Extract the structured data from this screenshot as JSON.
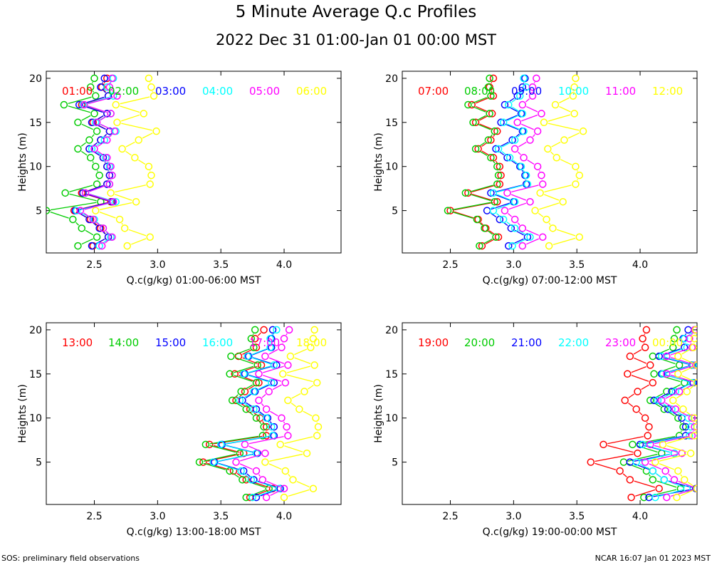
{
  "title": "5 Minute Average Q.c Profiles",
  "subtitle": "2022 Dec 31 01:00-Jan 01 00:00 MST",
  "footer": {
    "left": "SOS: preliminary field observations",
    "right": "NCAR 16:07 Jan 01 2023 MST"
  },
  "colors": {
    "red": "#ff0000",
    "green": "#00cc00",
    "blue": "#0000ff",
    "cyan": "#00ffff",
    "magenta": "#ff00ff",
    "yellow": "#ffff00"
  },
  "chart_data": [
    {
      "type": "line",
      "xlabel": "Q.c(g/kg) 01:00-06:00 MST",
      "ylabel": "Heights (m)",
      "xlim": [
        2.12,
        4.45
      ],
      "ylim": [
        0.2,
        20.8
      ],
      "xticks": [
        "2.5",
        "3.0",
        "3.5",
        "4.0"
      ],
      "yticks": [
        "5",
        "10",
        "15",
        "20"
      ],
      "heights": [
        1,
        2,
        3,
        4,
        5,
        6,
        7,
        8,
        9,
        10,
        11,
        12,
        13,
        14,
        15,
        16,
        17,
        18,
        19,
        20
      ],
      "series": [
        {
          "name": "01:00",
          "color": "#ff0000",
          "values": [
            2.49,
            2.61,
            2.55,
            2.47,
            2.34,
            2.63,
            2.4,
            2.6,
            2.62,
            2.6,
            2.57,
            2.46,
            2.55,
            2.62,
            2.49,
            2.6,
            2.4,
            2.61,
            2.56,
            2.6
          ]
        },
        {
          "name": "02:00",
          "color": "#00cc00",
          "values": [
            2.37,
            2.52,
            2.4,
            2.33,
            2.12,
            2.55,
            2.27,
            2.52,
            2.54,
            2.51,
            2.47,
            2.37,
            2.46,
            2.52,
            2.37,
            2.5,
            2.26,
            2.51,
            2.47,
            2.5
          ]
        },
        {
          "name": "03:00",
          "color": "#0000ff",
          "values": [
            2.48,
            2.61,
            2.54,
            2.46,
            2.35,
            2.64,
            2.41,
            2.6,
            2.62,
            2.6,
            2.57,
            2.46,
            2.55,
            2.62,
            2.48,
            2.6,
            2.38,
            2.61,
            2.55,
            2.58
          ]
        },
        {
          "name": "04:00",
          "color": "#00ffff",
          "values": [
            2.54,
            2.63,
            2.57,
            2.5,
            2.36,
            2.67,
            2.43,
            2.62,
            2.64,
            2.62,
            2.59,
            2.48,
            2.58,
            2.67,
            2.51,
            2.63,
            2.41,
            2.65,
            2.6,
            2.65
          ]
        },
        {
          "name": "05:00",
          "color": "#ff00ff",
          "values": [
            2.56,
            2.64,
            2.57,
            2.49,
            2.39,
            2.65,
            2.43,
            2.62,
            2.64,
            2.63,
            2.6,
            2.5,
            2.6,
            2.66,
            2.52,
            2.63,
            2.42,
            2.68,
            2.62,
            2.64
          ]
        },
        {
          "name": "06:00",
          "color": "#ffff00",
          "values": [
            2.76,
            2.94,
            2.74,
            2.7,
            2.51,
            2.83,
            2.63,
            2.94,
            2.95,
            2.93,
            2.82,
            2.72,
            2.85,
            2.99,
            2.68,
            2.89,
            2.67,
            2.97,
            2.95,
            2.93
          ]
        }
      ]
    },
    {
      "type": "line",
      "xlabel": "Q.c(g/kg) 07:00-12:00 MST",
      "ylabel": "Heights (m)",
      "xlim": [
        2.12,
        4.45
      ],
      "ylim": [
        0.2,
        20.8
      ],
      "xticks": [
        "2.5",
        "3.0",
        "3.5",
        "4.0"
      ],
      "yticks": [
        "5",
        "10",
        "15",
        "20"
      ],
      "heights": [
        1,
        2,
        3,
        4,
        5,
        6,
        7,
        8,
        9,
        10,
        11,
        12,
        13,
        14,
        15,
        16,
        17,
        18,
        19,
        20
      ],
      "series": [
        {
          "name": "07:00",
          "color": "#ff0000",
          "values": [
            2.75,
            2.88,
            2.78,
            2.72,
            2.5,
            2.87,
            2.64,
            2.89,
            2.9,
            2.89,
            2.84,
            2.72,
            2.82,
            2.87,
            2.7,
            2.83,
            2.67,
            2.84,
            2.81,
            2.84
          ]
        },
        {
          "name": "08:00",
          "color": "#00cc00",
          "values": [
            2.73,
            2.86,
            2.77,
            2.71,
            2.48,
            2.85,
            2.62,
            2.87,
            2.88,
            2.87,
            2.82,
            2.7,
            2.8,
            2.85,
            2.68,
            2.81,
            2.64,
            2.82,
            2.8,
            2.81
          ]
        },
        {
          "name": "09:00",
          "color": "#0000ff",
          "values": [
            2.96,
            3.11,
            2.98,
            2.89,
            2.79,
            3.0,
            2.82,
            3.1,
            3.09,
            3.05,
            2.95,
            2.86,
            2.99,
            3.07,
            2.9,
            3.06,
            2.93,
            3.03,
            3.07,
            3.09
          ]
        },
        {
          "name": "10:00",
          "color": "#00ffff",
          "values": [
            2.99,
            3.13,
            3.01,
            2.92,
            2.84,
            3.01,
            2.84,
            3.11,
            3.1,
            3.06,
            2.97,
            2.88,
            3.01,
            3.08,
            2.92,
            3.07,
            2.96,
            3.05,
            3.1,
            3.08
          ]
        },
        {
          "name": "11:00",
          "color": "#ff00ff",
          "values": [
            3.07,
            3.23,
            3.07,
            3.01,
            2.93,
            3.13,
            2.95,
            3.23,
            3.22,
            3.19,
            3.08,
            3.01,
            3.13,
            3.19,
            3.03,
            3.22,
            3.07,
            3.15,
            3.15,
            3.18
          ]
        },
        {
          "name": "12:00",
          "color": "#ffff00",
          "values": [
            3.28,
            3.52,
            3.31,
            3.26,
            3.17,
            3.39,
            3.21,
            3.49,
            3.52,
            3.49,
            3.34,
            3.27,
            3.4,
            3.55,
            3.24,
            3.48,
            3.33,
            3.47,
            3.48,
            3.49
          ]
        }
      ]
    },
    {
      "type": "line",
      "xlabel": "Q.c(g/kg) 13:00-18:00 MST",
      "ylabel": "Heights (m)",
      "xlim": [
        2.12,
        4.45
      ],
      "ylim": [
        0.2,
        20.8
      ],
      "xticks": [
        "2.5",
        "3.0",
        "3.5",
        "4.0"
      ],
      "yticks": [
        "5",
        "10",
        "15",
        "20"
      ],
      "heights": [
        1,
        2,
        3,
        4,
        5,
        6,
        7,
        8,
        9,
        10,
        11,
        12,
        13,
        14,
        15,
        16,
        17,
        18,
        19,
        20
      ],
      "series": [
        {
          "name": "13:00",
          "color": "#ff0000",
          "values": [
            3.73,
            3.91,
            3.7,
            3.6,
            3.36,
            3.68,
            3.41,
            3.86,
            3.86,
            3.81,
            3.73,
            3.62,
            3.69,
            3.8,
            3.61,
            3.82,
            3.64,
            3.78,
            3.77,
            3.84
          ]
        },
        {
          "name": "14:00",
          "color": "#00cc00",
          "values": [
            3.7,
            3.88,
            3.67,
            3.57,
            3.33,
            3.65,
            3.38,
            3.83,
            3.84,
            3.78,
            3.7,
            3.59,
            3.66,
            3.78,
            3.57,
            3.79,
            3.58,
            3.76,
            3.74,
            3.77
          ]
        },
        {
          "name": "15:00",
          "color": "#0000ff",
          "values": [
            3.78,
            3.97,
            3.76,
            3.68,
            3.45,
            3.79,
            3.51,
            3.92,
            3.92,
            3.87,
            3.78,
            3.67,
            3.77,
            3.92,
            3.69,
            3.94,
            3.72,
            3.9,
            3.9,
            3.91
          ]
        },
        {
          "name": "16:00",
          "color": "#00ffff",
          "values": [
            3.75,
            3.96,
            3.74,
            3.66,
            3.44,
            3.78,
            3.5,
            3.91,
            3.9,
            3.86,
            3.76,
            3.65,
            3.76,
            3.9,
            3.68,
            3.92,
            3.71,
            3.89,
            3.89,
            3.94
          ]
        },
        {
          "name": "17:00",
          "color": "#ff00ff",
          "values": [
            3.86,
            4.0,
            3.83,
            3.78,
            3.62,
            3.85,
            3.69,
            4.03,
            4.02,
            3.98,
            3.86,
            3.8,
            3.88,
            4.01,
            3.8,
            4.03,
            3.85,
            3.98,
            4.0,
            4.04
          ]
        },
        {
          "name": "18:00",
          "color": "#ffff00",
          "values": [
            4.0,
            4.23,
            4.07,
            4.01,
            3.85,
            4.18,
            3.97,
            4.26,
            4.27,
            4.25,
            4.12,
            4.03,
            4.16,
            4.26,
            3.99,
            4.24,
            4.05,
            4.21,
            4.23,
            4.24
          ]
        }
      ]
    },
    {
      "type": "line",
      "xlabel": "Q.c(g/kg) 19:00-00:00 MST",
      "ylabel": "Heights (m)",
      "xlim": [
        2.12,
        4.45
      ],
      "ylim": [
        0.2,
        20.8
      ],
      "xticks": [
        "2.5",
        "3.0",
        "3.5",
        "4.0"
      ],
      "yticks": [
        "5",
        "10",
        "15",
        "20"
      ],
      "heights": [
        1,
        2,
        3,
        4,
        5,
        6,
        7,
        8,
        9,
        10,
        11,
        12,
        13,
        14,
        15,
        16,
        17,
        18,
        19,
        20
      ],
      "series": [
        {
          "name": "19:00",
          "color": "#ff0000",
          "values": [
            3.93,
            4.15,
            3.92,
            3.84,
            3.61,
            3.98,
            3.71,
            4.06,
            4.07,
            4.04,
            3.97,
            3.88,
            3.98,
            4.1,
            3.9,
            4.08,
            3.92,
            4.04,
            4.02,
            4.05
          ]
        },
        {
          "name": "20:00",
          "color": "#00cc00",
          "values": [
            4.03,
            4.32,
            4.1,
            4.05,
            3.87,
            4.17,
            3.94,
            4.31,
            4.34,
            4.3,
            4.19,
            4.08,
            4.21,
            4.35,
            4.11,
            4.31,
            4.1,
            4.26,
            4.27,
            4.29
          ]
        },
        {
          "name": "21:00",
          "color": "#0000ff",
          "values": [
            4.07,
            4.44,
            4.19,
            4.1,
            3.92,
            4.27,
            4.0,
            4.36,
            4.36,
            4.33,
            4.22,
            4.11,
            4.25,
            4.42,
            4.17,
            4.41,
            4.15,
            4.35,
            4.34,
            4.38
          ]
        },
        {
          "name": "22:00",
          "color": "#00ffff",
          "values": [
            4.12,
            4.37,
            4.19,
            4.1,
            3.97,
            4.27,
            4.02,
            4.39,
            4.4,
            4.38,
            4.25,
            4.14,
            4.28,
            4.41,
            4.18,
            4.42,
            4.17,
            4.37,
            4.35,
            4.44
          ]
        },
        {
          "name": "23:00",
          "color": "#ff00ff",
          "values": [
            4.21,
            4.45,
            4.27,
            4.2,
            4.04,
            4.33,
            4.08,
            4.41,
            4.43,
            4.41,
            4.28,
            4.17,
            4.31,
            4.45,
            4.21,
            4.44,
            4.21,
            4.41,
            4.39,
            4.43
          ]
        },
        {
          "name": "00:00",
          "color": "#ffff00",
          "values": [
            4.29,
            4.45,
            4.35,
            4.3,
            4.12,
            4.4,
            4.18,
            4.43,
            4.45,
            4.43,
            4.34,
            4.26,
            4.37,
            4.45,
            4.3,
            4.45,
            4.3,
            4.42,
            4.43,
            4.44
          ]
        }
      ]
    }
  ]
}
